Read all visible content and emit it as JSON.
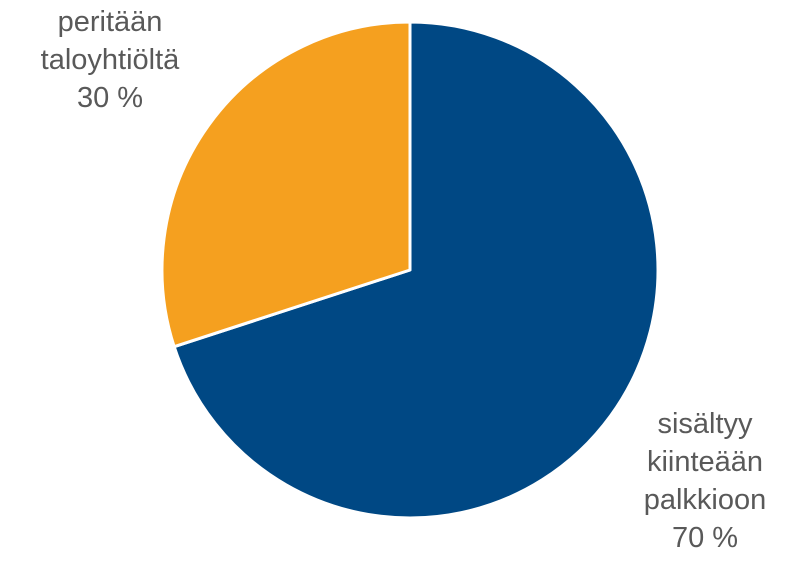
{
  "chart_data": {
    "type": "pie",
    "title": "",
    "start_angle_deg": 0,
    "direction": "clockwise",
    "slices": [
      {
        "label_lines": [
          "sisältyy",
          "kiinteään",
          "palkkioon"
        ],
        "value": 70,
        "value_label": "70 %",
        "color": "#004884"
      },
      {
        "label_lines": [
          "peritään",
          "taloyhtiöltä"
        ],
        "value": 30,
        "value_label": "30 %",
        "color": "#f5a01f"
      }
    ],
    "slice_border_color": "#ffffff",
    "label_color": "#595959",
    "legend": "none"
  }
}
